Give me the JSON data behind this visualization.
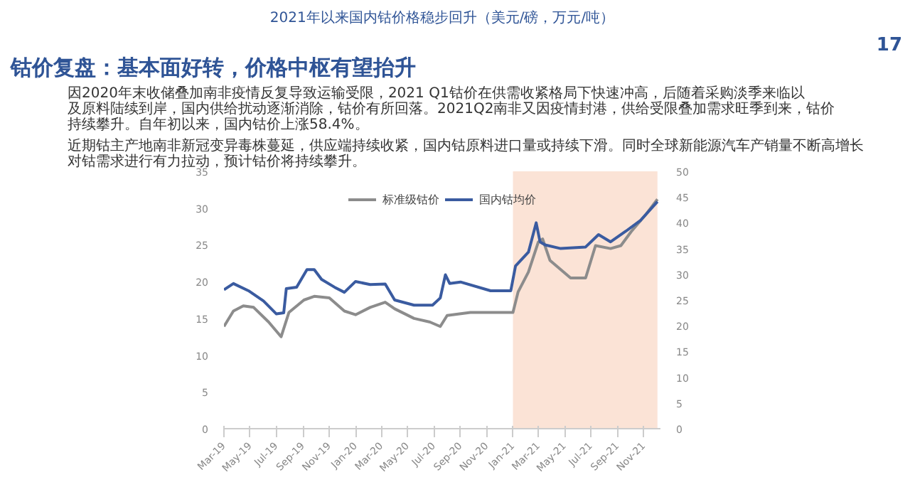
{
  "chart_data": {
    "type": "line",
    "title": "钴价复盘：基本面好转，价格中枢有望抬升",
    "subtitle": "2021年以来国内钴价格稳步回升（美元/磅，万元/吨）",
    "annotations": [
      "17",
      "因2020年末收储叠加南非疫情反复导致运输受限，2021 Q1钴价在供需收紧格局下快速冲高，后随着采购淡季来临以及原料陆续到岸，国内供给扰动逐渐消除，钴价有所回落。2021Q2南非又因疫情封港，供给受限叠加需求旺季到来，钴价持续攀升。自年初以来，国内钴价上涨58.4%。",
      "近期钴主产地南非新冠变异毒株蔓延，供应端持续收紧，国内钴原料进口量或持续下滑。同时全球新能源汽车产销量不断高增长对钴需求进行有力拉动，预计钴价将持续攀升。"
    ],
    "series": [
      {
        "name": "标准级钴价",
        "color": "#8c8c8c",
        "x": [
          "2019-03-01",
          "2019-03-23",
          "2019-04-15",
          "2019-05-09",
          "2019-06-13",
          "2019-07-12",
          "2019-07-30",
          "2019-09-03",
          "2019-09-27",
          "2019-11-01",
          "2019-12-06",
          "2020-01-01",
          "2020-02-04",
          "2020-03-10",
          "2020-04-01",
          "2020-05-16",
          "2020-06-22",
          "2020-07-16",
          "2020-08-01",
          "2020-09-24",
          "2021-01-01",
          "2021-01-13",
          "2021-02-06",
          "2021-03-01",
          "2021-03-11",
          "2021-03-28",
          "2021-05-15",
          "2021-06-19",
          "2021-07-12",
          "2021-08-16",
          "2021-09-09",
          "2021-10-03",
          "2021-11-07",
          "2021-12-03"
        ],
        "values": [
          13.9,
          16.0,
          16.7,
          16.5,
          14.5,
          12.5,
          15.8,
          17.5,
          18.0,
          17.8,
          16.0,
          15.5,
          16.5,
          17.2,
          16.3,
          15.0,
          14.5,
          13.9,
          15.4,
          15.8,
          15.8,
          18.6,
          21.3,
          25.4,
          25.8,
          22.9,
          20.5,
          20.5,
          24.9,
          24.5,
          24.9,
          26.8,
          29.2,
          31.2
        ]
      },
      {
        "name": "国内钴均价",
        "color": "#3a5ba0",
        "axis": "y2",
        "x": [
          "2019-03-01",
          "2019-03-23",
          "2019-04-27",
          "2019-06-01",
          "2019-07-01",
          "2019-07-18",
          "2019-07-24",
          "2019-08-17",
          "2019-09-10",
          "2019-09-27",
          "2019-10-14",
          "2019-11-13",
          "2019-12-06",
          "2020-01-01",
          "2020-02-04",
          "2020-03-10",
          "2020-04-01",
          "2020-05-16",
          "2020-06-28",
          "2020-07-16",
          "2020-07-28",
          "2020-08-07",
          "2020-09-01",
          "2020-11-10",
          "2020-12-27",
          "2021-01-07",
          "2021-02-06",
          "2021-02-24",
          "2021-03-05",
          "2021-03-17",
          "2021-04-22",
          "2021-06-19",
          "2021-07-19",
          "2021-08-16",
          "2021-09-21",
          "2021-10-25",
          "2021-12-03"
        ],
        "values": [
          27.0,
          28.2,
          26.8,
          24.8,
          22.3,
          22.5,
          27.2,
          27.5,
          30.9,
          30.9,
          29.0,
          27.5,
          26.5,
          28.6,
          28.0,
          28.1,
          25.0,
          24.0,
          24.0,
          25.4,
          29.9,
          28.2,
          28.5,
          26.8,
          26.8,
          31.6,
          34.3,
          40.0,
          36.3,
          35.7,
          35.0,
          35.3,
          37.7,
          36.3,
          38.4,
          40.5,
          44.1
        ]
      }
    ],
    "xlim": [
      "2019-03-01",
      "2021-12-10"
    ],
    "xticks": [
      {
        "value": "2019-03-01",
        "label": "Mar-19"
      },
      {
        "value": "2019-05-01",
        "label": "May-19"
      },
      {
        "value": "2019-07-01",
        "label": "Jul-19"
      },
      {
        "value": "2019-09-01",
        "label": "Sep-19"
      },
      {
        "value": "2019-11-01",
        "label": "Nov-19"
      },
      {
        "value": "2020-01-01",
        "label": "Jan-20"
      },
      {
        "value": "2020-03-01",
        "label": "Mar-20"
      },
      {
        "value": "2020-05-01",
        "label": "May-20"
      },
      {
        "value": "2020-07-01",
        "label": "Jul-20"
      },
      {
        "value": "2020-09-01",
        "label": "Sep-20"
      },
      {
        "value": "2020-11-01",
        "label": "Nov-20"
      },
      {
        "value": "2021-01-01",
        "label": "Jan-21"
      },
      {
        "value": "2021-03-01",
        "label": "Mar-21"
      },
      {
        "value": "2021-05-01",
        "label": "May-21"
      },
      {
        "value": "2021-07-01",
        "label": "Jul-21"
      },
      {
        "value": "2021-09-01",
        "label": "Sep-21"
      },
      {
        "value": "2021-11-01",
        "label": "Nov-21"
      }
    ],
    "ylim": [
      0,
      35
    ],
    "yticks": [
      0,
      5,
      10,
      15,
      20,
      25,
      30,
      35
    ],
    "y2lim": [
      0,
      50
    ],
    "y2ticks": [
      0,
      5,
      10,
      15,
      20,
      25,
      30,
      35,
      40,
      45,
      50
    ],
    "bands": [
      {
        "axis": "x",
        "from": "2021-01-01",
        "to": "2021-12-03",
        "color": "#fbe3d6"
      }
    ],
    "grid": false,
    "legend": "top",
    "marker": "none",
    "line_style": "solid"
  }
}
